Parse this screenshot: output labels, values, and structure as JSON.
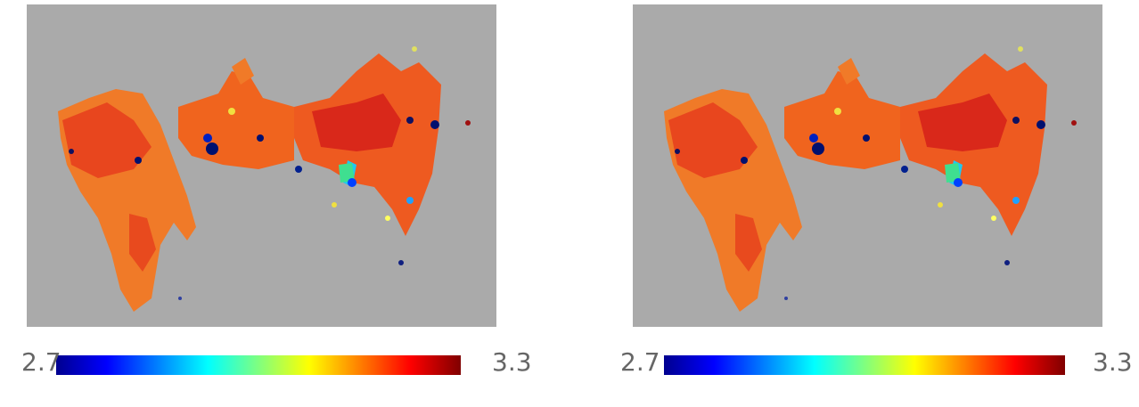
{
  "panels": [
    {
      "colorbar": {
        "min_label": "2.7",
        "max_label": "3.3"
      }
    },
    {
      "colorbar": {
        "min_label": "2.7",
        "max_label": "3.3"
      }
    }
  ]
}
